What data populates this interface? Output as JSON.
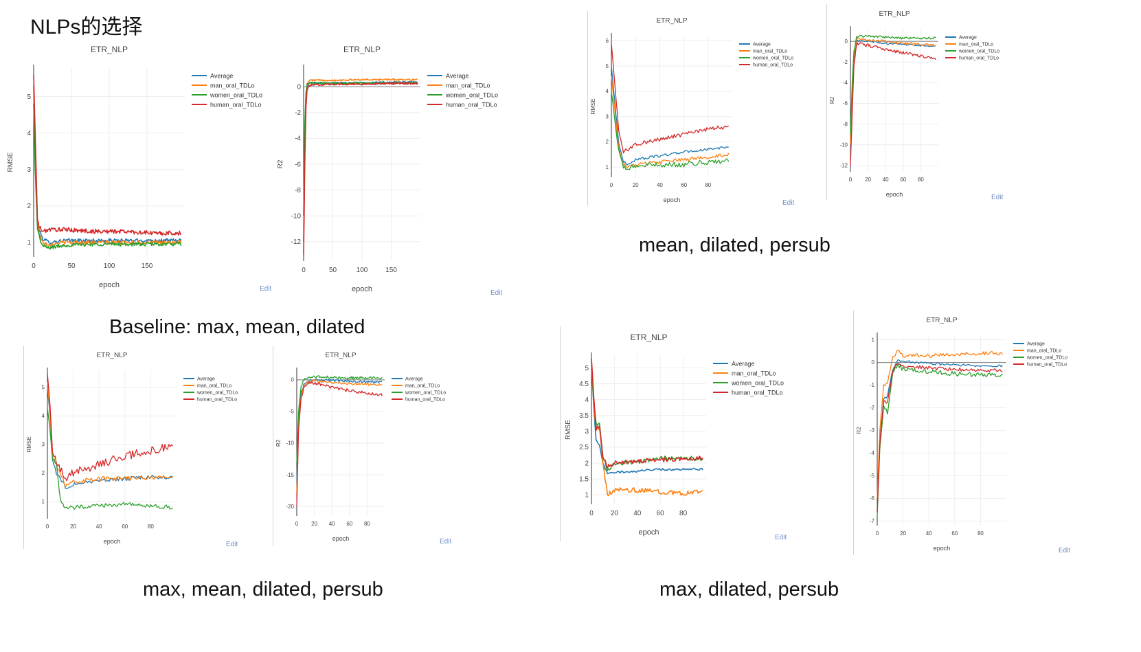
{
  "slide": {
    "title": "NLPs的选择",
    "captions": {
      "baseline": "Baseline: max, mean, dilated",
      "mean_dilated_persub": "mean, dilated, persub",
      "max_mean_dilated_persub": "max, mean, dilated, persub",
      "max_dilated_persub": "max, dilated, persub"
    }
  },
  "colors": {
    "Average": "#1f77b4",
    "man_oral_TDLo": "#ff7f0e",
    "women_oral_TDLo": "#2ca02c",
    "human_oral_TDLo": "#d62728"
  },
  "edit_label": "Edit",
  "chart_data": [
    {
      "id": "baseline-rmse",
      "type": "line",
      "title": "ETR_NLP",
      "xlabel": "epoch",
      "ylabel": "RMSE",
      "xlim": [
        0,
        200
      ],
      "ylim": [
        0.6,
        5.8
      ],
      "xticks": [
        0,
        50,
        100,
        150
      ],
      "yticks": [
        1,
        2,
        3,
        4,
        5
      ],
      "legend_position": "top-right",
      "series": [
        {
          "name": "Average",
          "x": [
            0,
            2,
            5,
            8,
            12,
            20,
            40,
            80,
            120,
            160,
            195
          ],
          "y": [
            5.3,
            3.5,
            1.6,
            1.3,
            1.1,
            1.0,
            1.05,
            1.05,
            1.05,
            1.05,
            1.05
          ],
          "noise": 0.05
        },
        {
          "name": "man_oral_TDLo",
          "x": [
            0,
            2,
            5,
            8,
            12,
            20,
            40,
            80,
            120,
            160,
            195
          ],
          "y": [
            5.0,
            3.2,
            1.5,
            1.2,
            1.0,
            0.95,
            1.0,
            1.0,
            1.0,
            1.0,
            1.0
          ],
          "noise": 0.05
        },
        {
          "name": "women_oral_TDLo",
          "x": [
            0,
            2,
            5,
            8,
            12,
            20,
            40,
            80,
            120,
            160,
            195
          ],
          "y": [
            4.8,
            3.0,
            1.4,
            1.1,
            0.9,
            0.85,
            0.92,
            0.95,
            0.95,
            0.95,
            0.95
          ],
          "noise": 0.05
        },
        {
          "name": "human_oral_TDLo",
          "x": [
            0,
            2,
            5,
            8,
            12,
            20,
            40,
            80,
            120,
            160,
            195
          ],
          "y": [
            5.6,
            4.0,
            1.6,
            1.4,
            1.3,
            1.35,
            1.35,
            1.3,
            1.3,
            1.25,
            1.25
          ],
          "noise": 0.06
        }
      ]
    },
    {
      "id": "baseline-r2",
      "type": "line",
      "title": "ETR_NLP",
      "xlabel": "epoch",
      "ylabel": "R2",
      "xlim": [
        0,
        200
      ],
      "ylim": [
        -13.5,
        1.5
      ],
      "xticks": [
        0,
        50,
        100,
        150
      ],
      "yticks": [
        0,
        -2,
        -4,
        -6,
        -8,
        -10,
        -12
      ],
      "legend_position": "top-right",
      "series": [
        {
          "name": "Average",
          "x": [
            0,
            2,
            4,
            6,
            10,
            20,
            50,
            100,
            150,
            195
          ],
          "y": [
            -12,
            -5,
            -1,
            0,
            0.3,
            0.3,
            0.3,
            0.3,
            0.35,
            0.35
          ],
          "noise": 0.06
        },
        {
          "name": "man_oral_TDLo",
          "x": [
            0,
            2,
            4,
            6,
            10,
            20,
            50,
            100,
            150,
            195
          ],
          "y": [
            -11,
            -4,
            -0.5,
            0.2,
            0.5,
            0.5,
            0.5,
            0.55,
            0.55,
            0.55
          ],
          "noise": 0.06
        },
        {
          "name": "women_oral_TDLo",
          "x": [
            0,
            2,
            4,
            6,
            10,
            20,
            50,
            100,
            150,
            195
          ],
          "y": [
            -10,
            -3,
            -0.5,
            0.2,
            0.3,
            0.3,
            0.25,
            0.3,
            0.3,
            0.3
          ],
          "noise": 0.07
        },
        {
          "name": "human_oral_TDLo",
          "x": [
            0,
            2,
            4,
            6,
            10,
            20,
            50,
            100,
            150,
            195
          ],
          "y": [
            -13,
            -6,
            -1.5,
            -0.2,
            0.1,
            0.15,
            0.2,
            0.2,
            0.25,
            0.25
          ],
          "noise": 0.07
        }
      ]
    },
    {
      "id": "mean-dilated-persub-rmse",
      "type": "line",
      "title": "ETR_NLP",
      "xlabel": "epoch",
      "ylabel": "RMSE",
      "xlim": [
        0,
        100
      ],
      "ylim": [
        0.6,
        6.2
      ],
      "xticks": [
        0,
        20,
        40,
        60,
        80
      ],
      "yticks": [
        1,
        2,
        3,
        4,
        5,
        6
      ],
      "legend_position": "top-right",
      "series": [
        {
          "name": "Average",
          "x": [
            0,
            3,
            6,
            10,
            14,
            20,
            40,
            60,
            80,
            97
          ],
          "y": [
            5.0,
            3.5,
            2.0,
            1.2,
            1.1,
            1.3,
            1.45,
            1.6,
            1.7,
            1.8
          ],
          "noise": 0.05
        },
        {
          "name": "man_oral_TDLo",
          "x": [
            0,
            3,
            6,
            10,
            14,
            20,
            40,
            60,
            80,
            97
          ],
          "y": [
            4.6,
            3.2,
            1.8,
            1.1,
            1.0,
            1.1,
            1.2,
            1.3,
            1.4,
            1.5
          ],
          "noise": 0.07
        },
        {
          "name": "women_oral_TDLo",
          "x": [
            0,
            3,
            6,
            10,
            14,
            20,
            40,
            60,
            80,
            97
          ],
          "y": [
            4.0,
            2.8,
            1.6,
            1.0,
            0.95,
            1.05,
            1.1,
            1.1,
            1.2,
            1.25
          ],
          "noise": 0.1
        },
        {
          "name": "human_oral_TDLo",
          "x": [
            0,
            3,
            6,
            10,
            14,
            20,
            40,
            60,
            80,
            97
          ],
          "y": [
            5.9,
            4.2,
            2.5,
            1.6,
            1.7,
            1.9,
            2.1,
            2.3,
            2.5,
            2.6
          ],
          "noise": 0.08
        }
      ]
    },
    {
      "id": "mean-dilated-persub-r2",
      "type": "line",
      "title": "ETR_NLP",
      "xlabel": "epoch",
      "ylabel": "R2",
      "xlim": [
        0,
        100
      ],
      "ylim": [
        -12.6,
        1.2
      ],
      "xticks": [
        0,
        20,
        40,
        60,
        80
      ],
      "yticks": [
        0,
        -2,
        -4,
        -6,
        -8,
        -10,
        -12
      ],
      "legend_position": "top-right",
      "series": [
        {
          "name": "Average",
          "x": [
            0,
            2,
            4,
            7,
            10,
            20,
            40,
            60,
            80,
            97
          ],
          "y": [
            -11,
            -6,
            -2,
            0,
            0.1,
            0,
            -0.2,
            -0.3,
            -0.4,
            -0.5
          ],
          "noise": 0.1
        },
        {
          "name": "man_oral_TDLo",
          "x": [
            0,
            2,
            4,
            7,
            10,
            20,
            40,
            60,
            80,
            97
          ],
          "y": [
            -10,
            -5,
            -1.5,
            0.2,
            0.3,
            0.1,
            0,
            -0.2,
            -0.3,
            -0.4
          ],
          "noise": 0.12
        },
        {
          "name": "women_oral_TDLo",
          "x": [
            0,
            2,
            4,
            7,
            10,
            20,
            40,
            60,
            80,
            97
          ],
          "y": [
            -9,
            -4,
            -1,
            0.4,
            0.5,
            0.5,
            0.4,
            0.3,
            0.3,
            0.3
          ],
          "noise": 0.1
        },
        {
          "name": "human_oral_TDLo",
          "x": [
            0,
            2,
            4,
            7,
            10,
            20,
            40,
            60,
            80,
            97
          ],
          "y": [
            -12,
            -7,
            -2.5,
            -0.3,
            -0.2,
            -0.4,
            -0.8,
            -1.1,
            -1.4,
            -1.7
          ],
          "noise": 0.15
        }
      ]
    },
    {
      "id": "max-mean-dilated-persub-rmse",
      "type": "line",
      "title": "ETR_NLP",
      "xlabel": "epoch",
      "ylabel": "RMSE",
      "xlim": [
        0,
        100
      ],
      "ylim": [
        0.4,
        5.6
      ],
      "xticks": [
        0,
        20,
        40,
        60,
        80
      ],
      "yticks": [
        1,
        2,
        3,
        4,
        5
      ],
      "legend_position": "top-right",
      "series": [
        {
          "name": "Average",
          "x": [
            0,
            2,
            4,
            7,
            10,
            14,
            20,
            40,
            60,
            80,
            97
          ],
          "y": [
            5.0,
            4.0,
            2.5,
            2.0,
            1.8,
            1.5,
            1.6,
            1.75,
            1.8,
            1.85,
            1.85
          ],
          "noise": 0.07
        },
        {
          "name": "man_oral_TDLo",
          "x": [
            0,
            2,
            4,
            7,
            10,
            14,
            20,
            40,
            60,
            80,
            97
          ],
          "y": [
            5.2,
            4.1,
            2.7,
            2.3,
            2.0,
            1.6,
            1.7,
            1.8,
            1.8,
            1.85,
            1.85
          ],
          "noise": 0.08
        },
        {
          "name": "women_oral_TDLo",
          "x": [
            0,
            2,
            4,
            7,
            10,
            14,
            20,
            40,
            60,
            80,
            97
          ],
          "y": [
            4.3,
            3.5,
            2.5,
            2.3,
            1.1,
            0.75,
            0.8,
            0.85,
            0.9,
            0.85,
            0.8
          ],
          "noise": 0.07
        },
        {
          "name": "human_oral_TDLo",
          "x": [
            0,
            2,
            4,
            7,
            10,
            14,
            20,
            40,
            60,
            80,
            97
          ],
          "y": [
            5.5,
            4.4,
            2.8,
            2.4,
            2.1,
            1.8,
            2.0,
            2.3,
            2.6,
            2.8,
            2.9
          ],
          "noise": 0.15
        }
      ]
    },
    {
      "id": "max-mean-dilated-persub-r2",
      "type": "line",
      "title": "ETR_NLP",
      "xlabel": "epoch",
      "ylabel": "R2",
      "xlim": [
        0,
        100
      ],
      "ylim": [
        -21.5,
        1.5
      ],
      "xticks": [
        0,
        20,
        40,
        60,
        80
      ],
      "yticks": [
        0,
        -5,
        -10,
        -15,
        -20
      ],
      "legend_position": "top-right",
      "series": [
        {
          "name": "Average",
          "x": [
            0,
            2,
            5,
            8,
            12,
            20,
            40,
            60,
            80,
            97
          ],
          "y": [
            -16,
            -6,
            -2,
            -0.8,
            -0.3,
            0,
            -0.1,
            -0.2,
            -0.3,
            -0.4
          ],
          "noise": 0.2
        },
        {
          "name": "man_oral_TDLo",
          "x": [
            0,
            2,
            5,
            8,
            12,
            20,
            40,
            60,
            80,
            97
          ],
          "y": [
            -18,
            -7,
            -2.5,
            -1,
            -0.3,
            -0.2,
            -0.4,
            -0.6,
            -0.7,
            -0.8
          ],
          "noise": 0.2
        },
        {
          "name": "women_oral_TDLo",
          "x": [
            0,
            2,
            5,
            8,
            12,
            20,
            40,
            60,
            80,
            97
          ],
          "y": [
            -13,
            -5,
            -1,
            0,
            0.3,
            0.5,
            0.4,
            0.3,
            0.3,
            0.3
          ],
          "noise": 0.2
        },
        {
          "name": "human_oral_TDLo",
          "x": [
            0,
            2,
            5,
            8,
            12,
            20,
            40,
            60,
            80,
            97
          ],
          "y": [
            -20,
            -8,
            -3,
            -1.3,
            -0.5,
            -0.5,
            -1.2,
            -1.7,
            -2.1,
            -2.4
          ],
          "noise": 0.25
        }
      ]
    },
    {
      "id": "max-dilated-persub-rmse",
      "type": "line",
      "title": "ETR_NLP",
      "xlabel": "epoch",
      "ylabel": "RMSE",
      "xlim": [
        0,
        100
      ],
      "ylim": [
        0.7,
        5.4
      ],
      "xticks": [
        0,
        20,
        40,
        60,
        80
      ],
      "yticks": [
        1,
        1.5,
        2,
        2.5,
        3,
        3.5,
        4,
        4.5,
        5
      ],
      "legend_position": "top-right",
      "series": [
        {
          "name": "Average",
          "x": [
            0,
            2,
            4,
            7,
            10,
            14,
            20,
            40,
            60,
            80,
            97
          ],
          "y": [
            5.0,
            3.8,
            2.7,
            2.6,
            2.0,
            1.65,
            1.7,
            1.75,
            1.8,
            1.8,
            1.8
          ],
          "noise": 0.04
        },
        {
          "name": "man_oral_TDLo",
          "x": [
            0,
            2,
            4,
            7,
            10,
            14,
            20,
            40,
            60,
            80,
            97
          ],
          "y": [
            5.1,
            3.9,
            3.0,
            3.1,
            2.0,
            1.0,
            1.15,
            1.15,
            1.1,
            1.05,
            1.1
          ],
          "noise": 0.07
        },
        {
          "name": "women_oral_TDLo",
          "x": [
            0,
            2,
            4,
            7,
            10,
            14,
            20,
            40,
            60,
            80,
            97
          ],
          "y": [
            5.2,
            4.0,
            3.2,
            3.2,
            2.2,
            1.8,
            1.95,
            2.05,
            2.15,
            2.15,
            2.15
          ],
          "noise": 0.07
        },
        {
          "name": "human_oral_TDLo",
          "x": [
            0,
            2,
            4,
            7,
            10,
            14,
            20,
            40,
            60,
            80,
            97
          ],
          "y": [
            5.3,
            4.1,
            3.1,
            3.2,
            2.2,
            1.9,
            2.0,
            2.05,
            2.1,
            2.15,
            2.15
          ],
          "noise": 0.07
        }
      ]
    },
    {
      "id": "max-dilated-persub-r2",
      "type": "line",
      "title": "ETR_NLP",
      "xlabel": "epoch",
      "ylabel": "R2",
      "xlim": [
        0,
        100
      ],
      "ylim": [
        -7.2,
        1.2
      ],
      "xticks": [
        0,
        20,
        40,
        60,
        80
      ],
      "yticks": [
        1,
        0,
        -1,
        -2,
        -3,
        -4,
        -5,
        -6,
        -7
      ],
      "legend_position": "top-right",
      "series": [
        {
          "name": "Average",
          "x": [
            0,
            2,
            5,
            8,
            12,
            16,
            20,
            40,
            60,
            80,
            97
          ],
          "y": [
            -6.5,
            -3.5,
            -1.6,
            -1.5,
            -0.3,
            0.1,
            0.05,
            -0.05,
            -0.1,
            -0.15,
            -0.15
          ],
          "noise": 0.05
        },
        {
          "name": "man_oral_TDLo",
          "x": [
            0,
            2,
            5,
            8,
            12,
            16,
            20,
            40,
            60,
            80,
            97
          ],
          "y": [
            -6.0,
            -3.0,
            -1.0,
            -0.9,
            0.2,
            0.5,
            0.3,
            0.3,
            0.35,
            0.4,
            0.4
          ],
          "noise": 0.08
        },
        {
          "name": "women_oral_TDLo",
          "x": [
            0,
            2,
            5,
            8,
            12,
            16,
            20,
            40,
            60,
            80,
            97
          ],
          "y": [
            -6.8,
            -3.8,
            -2.0,
            -2.2,
            -0.5,
            -0.1,
            -0.3,
            -0.4,
            -0.5,
            -0.55,
            -0.55
          ],
          "noise": 0.1
        },
        {
          "name": "human_oral_TDLo",
          "x": [
            0,
            2,
            5,
            8,
            12,
            16,
            20,
            40,
            60,
            80,
            97
          ],
          "y": [
            -6.6,
            -3.6,
            -1.7,
            -1.8,
            -0.4,
            0,
            -0.15,
            -0.25,
            -0.3,
            -0.35,
            -0.35
          ],
          "noise": 0.08
        }
      ]
    }
  ]
}
